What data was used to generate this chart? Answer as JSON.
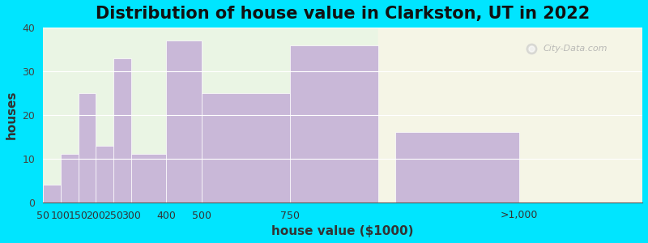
{
  "title": "Distribution of house value in Clarkston, UT in 2022",
  "xlabel": "house value ($1000)",
  "ylabel": "houses",
  "bar_lefts": [
    50,
    100,
    150,
    200,
    250,
    300,
    400,
    500,
    750,
    1050
  ],
  "bar_widths": [
    50,
    50,
    50,
    50,
    50,
    100,
    100,
    250,
    250,
    350
  ],
  "bar_values": [
    4,
    11,
    25,
    13,
    33,
    11,
    37,
    25,
    36,
    16
  ],
  "tick_positions": [
    50,
    100,
    150,
    200,
    250,
    300,
    400,
    500,
    750,
    1400
  ],
  "tick_labels": [
    "50",
    "100",
    "150",
    "200",
    "250",
    "300",
    "400",
    "500",
    "750",
    ">1,000"
  ],
  "bar_color": "#c9b8d8",
  "background_outer": "#00e5ff",
  "background_plot_left": "#eaf5e4",
  "background_plot_right": "#f5f5e6",
  "split_x": 1000,
  "xlim_left": 50,
  "xlim_right": 1750,
  "ylim": [
    0,
    40
  ],
  "yticks": [
    0,
    10,
    20,
    30,
    40
  ],
  "title_fontsize": 15,
  "axis_label_fontsize": 11,
  "tick_fontsize": 9,
  "watermark_text": "City-Data.com"
}
